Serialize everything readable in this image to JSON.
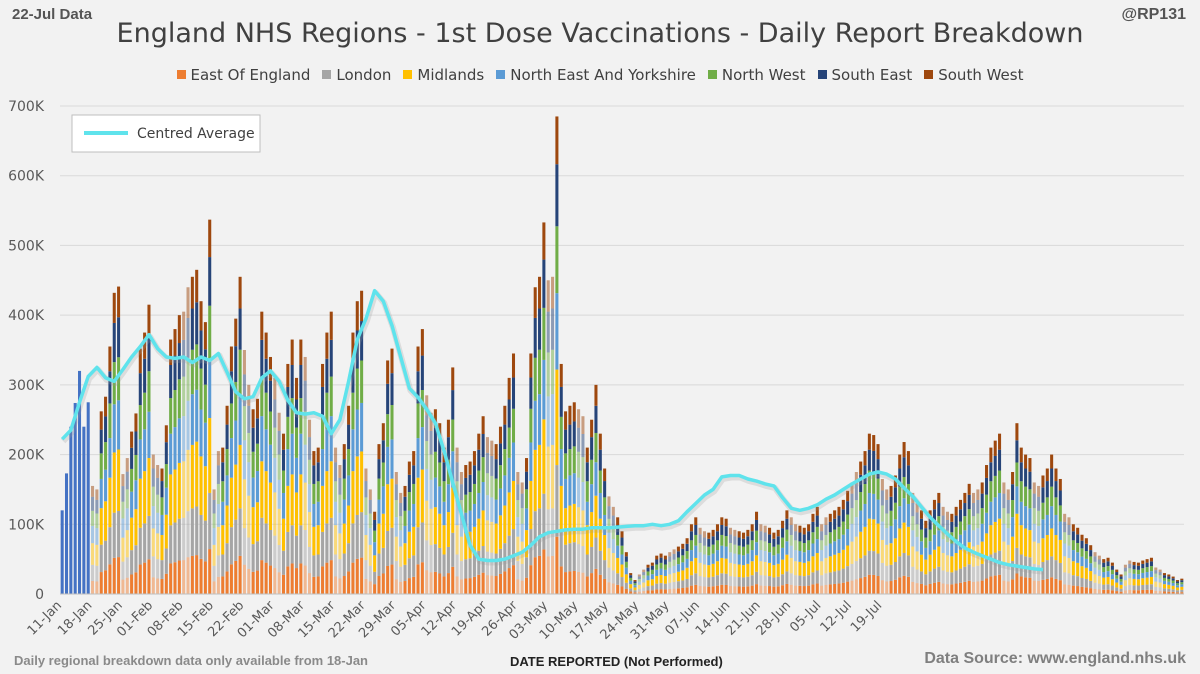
{
  "header": {
    "date_label": "22-Jul Data",
    "handle": "@RP131"
  },
  "footer": {
    "note": "Daily regional breakdown data only available from 18-Jan",
    "source": "Data Source: www.england.nhs.uk"
  },
  "chart_data": {
    "type": "bar",
    "stacked": true,
    "title": "England NHS Regions - 1st Dose Vaccinations - Daily Report Breakdown",
    "xlabel": "DATE REPORTED (Not Performed)",
    "ylabel": "",
    "ylim": [
      0,
      700000
    ],
    "yticks": [
      "0",
      "100K",
      "200K",
      "300K",
      "400K",
      "500K",
      "600K",
      "700K"
    ],
    "xticks": [
      "11-Jan",
      "18-Jan",
      "25-Jan",
      "01-Feb",
      "08-Feb",
      "15-Feb",
      "22-Feb",
      "01-Mar",
      "08-Mar",
      "15-Mar",
      "22-Mar",
      "29-Mar",
      "05-Apr",
      "12-Apr",
      "19-Apr",
      "26-Apr",
      "03-May",
      "10-May",
      "17-May",
      "24-May",
      "31-May",
      "07-Jun",
      "14-Jun",
      "21-Jun",
      "28-Jun",
      "05-Jul",
      "12-Jul",
      "19-Jul"
    ],
    "first_date": "11-Jan",
    "last_date": "22-Jul",
    "grid": true,
    "legend_position": "top",
    "average_legend_label": "Centred Average",
    "series_names": [
      "East Of England",
      "London",
      "Midlands",
      "North East And Yorkshire",
      "North West",
      "South East",
      "South West"
    ],
    "series_colors": [
      "#ed7d31",
      "#a5a5a5",
      "#ffc000",
      "#5b9bd5",
      "#70ad47",
      "#264478",
      "#9e480e"
    ],
    "average_color": "#5fe3ec",
    "national_total_color": "#4472c4",
    "national_totals_before_18jan": [
      120000,
      173000,
      240000,
      274000,
      320000,
      240000,
      275000
    ],
    "daily_totals_from_18jan": [
      155000,
      150000,
      262000,
      283000,
      355000,
      432000,
      441000,
      172000,
      195000,
      233000,
      259000,
      352000,
      375000,
      415000,
      200000,
      185000,
      180000,
      242000,
      365000,
      380000,
      400000,
      405000,
      440000,
      455000,
      465000,
      420000,
      390000,
      537000,
      150000,
      205000,
      210000,
      270000,
      355000,
      395000,
      455000,
      350000,
      300000,
      265000,
      280000,
      405000,
      375000,
      340000,
      310000,
      260000,
      230000,
      330000,
      365000,
      310000,
      365000,
      340000,
      250000,
      205000,
      210000,
      330000,
      375000,
      405000,
      210000,
      185000,
      215000,
      270000,
      375000,
      420000,
      435000,
      180000,
      150000,
      118000,
      215000,
      245000,
      335000,
      352000,
      175000,
      145000,
      155000,
      190000,
      205000,
      355000,
      380000,
      285000,
      260000,
      265000,
      245000,
      210000,
      250000,
      325000,
      210000,
      175000,
      185000,
      190000,
      205000,
      230000,
      255000,
      225000,
      220000,
      215000,
      240000,
      270000,
      310000,
      345000,
      175000,
      160000,
      195000,
      345000,
      440000,
      455000,
      533000,
      450000,
      455000,
      685000,
      330000,
      262000,
      270000,
      275000,
      265000,
      255000,
      210000,
      250000,
      300000,
      230000,
      180000,
      140000,
      125000,
      110000,
      90000,
      60000,
      30000,
      20000,
      28000,
      35000,
      42000,
      45000,
      55000,
      58000,
      55000,
      60000,
      64000,
      68000,
      72000,
      80000,
      100000,
      110000,
      95000,
      90000,
      88000,
      92000,
      100000,
      110000,
      108000,
      95000,
      92000,
      90000,
      88000,
      92000,
      100000,
      118000,
      100000,
      98000,
      95000,
      88000,
      92000,
      105000,
      120000,
      110000,
      100000,
      98000,
      95000,
      100000,
      115000,
      125000,
      100000,
      110000,
      115000,
      120000,
      125000,
      135000,
      148000,
      160000,
      175000,
      190000,
      205000,
      230000,
      228000,
      215000,
      165000,
      150000,
      155000,
      170000,
      200000,
      218000,
      205000,
      145000,
      130000,
      120000,
      105000,
      120000,
      135000,
      145000,
      125000,
      118000,
      115000,
      125000,
      135000,
      145000,
      158000,
      145000,
      150000,
      160000,
      185000,
      210000,
      220000,
      230000,
      160000,
      150000,
      175000,
      245000,
      210000,
      200000,
      195000,
      160000,
      155000,
      170000,
      180000,
      200000,
      180000,
      165000,
      115000,
      110000,
      100000,
      95000,
      85000,
      80000,
      70000,
      60000,
      55000,
      50000,
      52000,
      45000,
      35000,
      28000,
      42000,
      48000,
      46000,
      45000,
      48000,
      50000,
      52000,
      38000,
      35000,
      30000,
      28000,
      25000,
      20000,
      22000
    ],
    "centred_average": [
      [
        0,
        222000
      ],
      [
        2,
        235000
      ],
      [
        4,
        275000
      ],
      [
        6,
        312000
      ],
      [
        8,
        325000
      ],
      [
        10,
        310000
      ],
      [
        12,
        305000
      ],
      [
        14,
        322000
      ],
      [
        16,
        340000
      ],
      [
        18,
        355000
      ],
      [
        20,
        372000
      ],
      [
        22,
        352000
      ],
      [
        24,
        340000
      ],
      [
        26,
        338000
      ],
      [
        28,
        340000
      ],
      [
        30,
        332000
      ],
      [
        32,
        340000
      ],
      [
        34,
        335000
      ],
      [
        36,
        345000
      ],
      [
        38,
        318000
      ],
      [
        40,
        290000
      ],
      [
        42,
        280000
      ],
      [
        44,
        283000
      ],
      [
        46,
        310000
      ],
      [
        48,
        320000
      ],
      [
        50,
        305000
      ],
      [
        52,
        278000
      ],
      [
        54,
        260000
      ],
      [
        56,
        258000
      ],
      [
        58,
        260000
      ],
      [
        60,
        255000
      ],
      [
        62,
        230000
      ],
      [
        64,
        250000
      ],
      [
        66,
        305000
      ],
      [
        68,
        365000
      ],
      [
        70,
        395000
      ],
      [
        72,
        435000
      ],
      [
        74,
        420000
      ],
      [
        76,
        385000
      ],
      [
        78,
        340000
      ],
      [
        80,
        295000
      ],
      [
        82,
        282000
      ],
      [
        84,
        265000
      ],
      [
        86,
        245000
      ],
      [
        88,
        205000
      ],
      [
        90,
        160000
      ],
      [
        92,
        115000
      ],
      [
        94,
        70000
      ],
      [
        96,
        50000
      ],
      [
        98,
        48000
      ],
      [
        100,
        48000
      ],
      [
        102,
        50000
      ],
      [
        104,
        55000
      ],
      [
        106,
        60000
      ],
      [
        108,
        70000
      ],
      [
        110,
        82000
      ],
      [
        112,
        88000
      ],
      [
        114,
        90000
      ],
      [
        116,
        92000
      ],
      [
        118,
        93000
      ],
      [
        120,
        93000
      ],
      [
        122,
        95000
      ],
      [
        124,
        95000
      ],
      [
        126,
        95000
      ],
      [
        128,
        96000
      ],
      [
        130,
        97000
      ],
      [
        132,
        98000
      ],
      [
        134,
        98000
      ],
      [
        136,
        100000
      ],
      [
        138,
        98000
      ],
      [
        140,
        100000
      ],
      [
        142,
        105000
      ],
      [
        144,
        118000
      ],
      [
        146,
        130000
      ],
      [
        148,
        142000
      ],
      [
        150,
        150000
      ],
      [
        152,
        168000
      ],
      [
        154,
        170000
      ],
      [
        156,
        170000
      ],
      [
        158,
        165000
      ],
      [
        160,
        162000
      ],
      [
        162,
        158000
      ],
      [
        164,
        155000
      ],
      [
        166,
        138000
      ],
      [
        168,
        123000
      ],
      [
        170,
        120000
      ],
      [
        172,
        123000
      ],
      [
        174,
        128000
      ],
      [
        176,
        136000
      ],
      [
        178,
        142000
      ],
      [
        180,
        150000
      ],
      [
        182,
        158000
      ],
      [
        184,
        165000
      ],
      [
        186,
        172000
      ],
      [
        188,
        175000
      ],
      [
        190,
        172000
      ],
      [
        192,
        165000
      ],
      [
        194,
        152000
      ],
      [
        196,
        140000
      ],
      [
        198,
        125000
      ],
      [
        200,
        110000
      ],
      [
        202,
        98000
      ],
      [
        204,
        86000
      ],
      [
        206,
        75000
      ],
      [
        208,
        66000
      ],
      [
        210,
        60000
      ],
      [
        212,
        55000
      ],
      [
        214,
        50000
      ],
      [
        216,
        45000
      ],
      [
        218,
        42000
      ],
      [
        220,
        40000
      ],
      [
        222,
        38000
      ],
      [
        224,
        36000
      ],
      [
        226,
        35000
      ]
    ]
  }
}
